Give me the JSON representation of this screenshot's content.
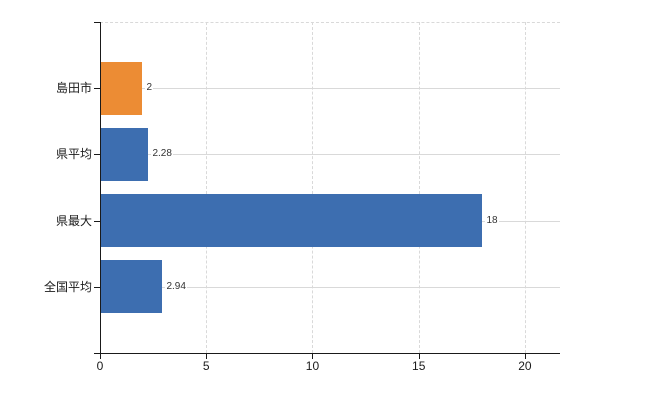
{
  "chart_data": {
    "type": "bar",
    "orientation": "horizontal",
    "categories": [
      "島田市",
      "県平均",
      "県最大",
      "全国平均"
    ],
    "values": [
      2,
      2.28,
      18,
      2.94
    ],
    "value_labels": [
      "2",
      "2.28",
      "18",
      "2.94"
    ],
    "bar_colors": [
      "#EC8C34",
      "#3D6EB0",
      "#3D6EB0",
      "#3D6EB0"
    ],
    "x_ticks": [
      0,
      5,
      10,
      15,
      20
    ],
    "xlim": [
      0,
      21.65
    ],
    "grid": true,
    "legend": "none",
    "title": "",
    "xlabel": "",
    "ylabel": ""
  },
  "colors": {
    "axis": "#1a1a1a",
    "gridline": "#d9d9d9",
    "background": "#ffffff",
    "orange_bar": "#EC8C34",
    "blue_bar": "#3D6EB0"
  }
}
